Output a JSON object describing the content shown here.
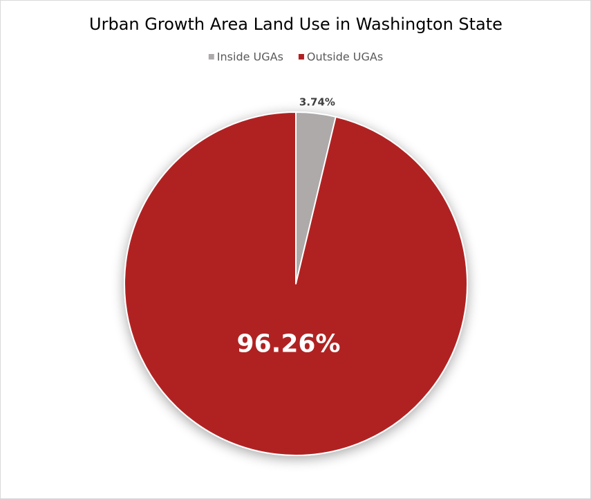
{
  "chart_data": {
    "type": "pie",
    "title": "Urban Growth Area Land Use in Washington State",
    "categories": [
      "Inside UGAs",
      "Outside UGAs"
    ],
    "values": [
      3.74,
      96.26
    ],
    "value_labels": [
      "3.74%",
      "96.26%"
    ],
    "colors": [
      "#aeaaaa",
      "#b02022"
    ],
    "legend": "top"
  }
}
